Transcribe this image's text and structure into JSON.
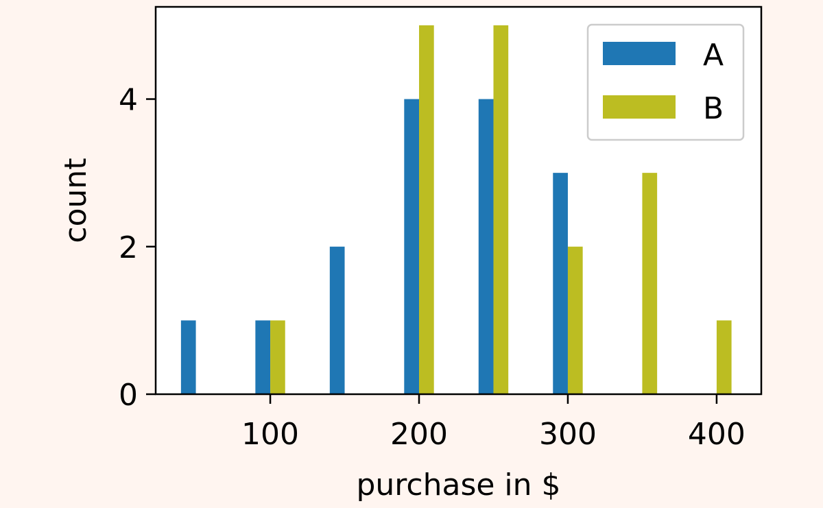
{
  "colors": {
    "page_background": "#fff5f0",
    "plot_background": "#ffffff",
    "series_A": "#1f77b4",
    "series_B": "#bcbd22",
    "axis": "#000000",
    "legend_border": "#cccccc"
  },
  "chart_data": {
    "type": "bar",
    "title": "",
    "xlabel": "purchase in $",
    "ylabel": "count",
    "xlim": [
      23,
      430
    ],
    "ylim": [
      0,
      5.25
    ],
    "x_ticks": [
      100,
      200,
      300,
      400
    ],
    "y_ticks": [
      0,
      2,
      4
    ],
    "grid": false,
    "legend_position": "top-right",
    "bar_width": 10,
    "series": [
      {
        "name": "A",
        "color": "#1f77b4",
        "points": [
          {
            "x": 45,
            "y": 1
          },
          {
            "x": 95,
            "y": 1
          },
          {
            "x": 145,
            "y": 2
          },
          {
            "x": 195,
            "y": 4
          },
          {
            "x": 245,
            "y": 4
          },
          {
            "x": 295,
            "y": 3
          }
        ]
      },
      {
        "name": "B",
        "color": "#bcbd22",
        "points": [
          {
            "x": 105,
            "y": 1
          },
          {
            "x": 205,
            "y": 5
          },
          {
            "x": 255,
            "y": 5
          },
          {
            "x": 305,
            "y": 2
          },
          {
            "x": 355,
            "y": 3
          },
          {
            "x": 405,
            "y": 1
          }
        ]
      }
    ]
  }
}
